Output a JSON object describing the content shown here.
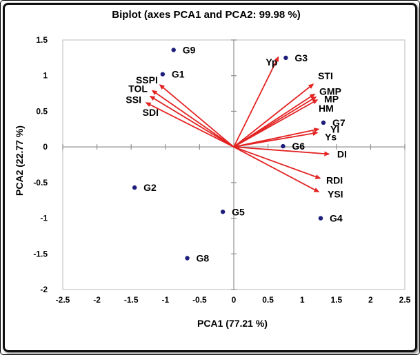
{
  "chart_data": {
    "type": "scatter",
    "subtype": "pca-biplot",
    "title": "Biplot (axes PCA1 and PCA2: 99.98 %)",
    "xlabel": "PCA1 (77.21 %)",
    "ylabel": "PCA2 (22.77 %)",
    "xlim": [
      -2.5,
      2.5
    ],
    "ylim": [
      -2,
      1.5
    ],
    "xticks": [
      -2.5,
      -2,
      -1.5,
      -1,
      -0.5,
      0,
      0.5,
      1,
      1.5,
      2,
      2.5
    ],
    "yticks": [
      1.5,
      1,
      0.5,
      0,
      -0.5,
      -1,
      -1.5,
      -2
    ],
    "grid": false,
    "legend": "none",
    "colors": {
      "vector": "#e32222",
      "point": "#1d1d7c",
      "axis_line": "#8f8f8f",
      "plot_border": "#c6c6c6",
      "text": "#000000"
    },
    "point_label_offset": {
      "dx": 13,
      "dy": 5
    },
    "points": [
      {
        "label": "G1",
        "x": -1.04,
        "y": 1.02
      },
      {
        "label": "G2",
        "x": -1.45,
        "y": -0.57
      },
      {
        "label": "G3",
        "x": 0.76,
        "y": 1.25
      },
      {
        "label": "G4",
        "x": 1.27,
        "y": -1.0
      },
      {
        "label": "G5",
        "x": -0.16,
        "y": -0.91
      },
      {
        "label": "G6",
        "x": 0.72,
        "y": 0.01
      },
      {
        "label": "G7",
        "x": 1.31,
        "y": 0.34
      },
      {
        "label": "G8",
        "x": -0.68,
        "y": -1.56
      },
      {
        "label": "G9",
        "x": -0.88,
        "y": 1.36
      }
    ],
    "vectors": [
      {
        "label": "SSPI",
        "x": -1.08,
        "y": 0.87,
        "anchor": "end",
        "ldx": -3,
        "ldy": -2
      },
      {
        "label": "TOL",
        "x": -1.19,
        "y": 0.79,
        "anchor": "end",
        "ldx": -7,
        "ldy": 2
      },
      {
        "label": "SSI",
        "x": -1.22,
        "y": 0.71,
        "anchor": "end",
        "ldx": -13,
        "ldy": 10
      },
      {
        "label": "SDI",
        "x": -1.28,
        "y": 0.62,
        "anchor": "end",
        "ldx": 18,
        "ldy": 19
      },
      {
        "label": "Yp",
        "x": 0.65,
        "y": 1.26,
        "anchor": "end",
        "ldx": -1,
        "ldy": 12
      },
      {
        "label": "STI",
        "x": 1.16,
        "y": 0.88,
        "anchor": "start",
        "ldx": 7,
        "ldy": -7
      },
      {
        "label": "GMP",
        "x": 1.18,
        "y": 0.74,
        "anchor": "start",
        "ldx": 7,
        "ldy": 1
      },
      {
        "label": "MP",
        "x": 1.2,
        "y": 0.7,
        "anchor": "start",
        "ldx": 12,
        "ldy": 8
      },
      {
        "label": "HM",
        "x": 1.22,
        "y": 0.66,
        "anchor": "start",
        "ldx": 2,
        "ldy": 17
      },
      {
        "label": "YI",
        "x": 1.24,
        "y": 0.25,
        "anchor": "start",
        "ldx": 17,
        "ldy": 5
      },
      {
        "label": "Ys",
        "x": 1.22,
        "y": 0.2,
        "anchor": "start",
        "ldx": 11,
        "ldy": 11
      },
      {
        "label": "DI",
        "x": 1.39,
        "y": -0.1,
        "anchor": "start",
        "ldx": 12,
        "ldy": 5
      },
      {
        "label": "RDI",
        "x": 1.26,
        "y": -0.44,
        "anchor": "start",
        "ldx": 9,
        "ldy": 8
      },
      {
        "label": "YSI",
        "x": 1.24,
        "y": -0.63,
        "anchor": "start",
        "ldx": 13,
        "ldy": 8
      }
    ]
  }
}
